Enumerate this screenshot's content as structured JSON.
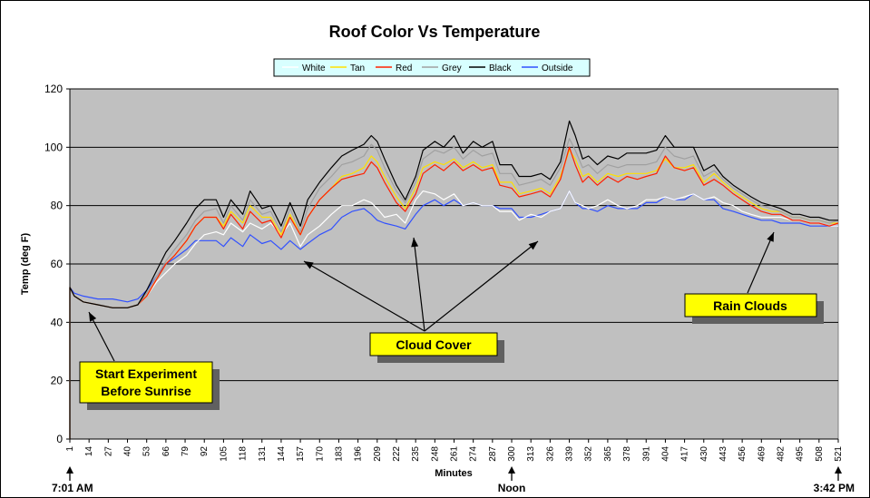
{
  "chart_data": {
    "type": "line",
    "title": "Roof Color Vs Temperature",
    "xlabel": "Minutes",
    "ylabel": "Temp (deg F)",
    "ylim": [
      0,
      120
    ],
    "xlim": [
      1,
      521
    ],
    "y_ticks": [
      0,
      20,
      40,
      60,
      80,
      100,
      120
    ],
    "x_ticks": [
      1,
      14,
      27,
      40,
      53,
      66,
      79,
      92,
      105,
      118,
      131,
      144,
      157,
      170,
      183,
      196,
      209,
      222,
      235,
      248,
      261,
      274,
      287,
      300,
      313,
      326,
      339,
      352,
      365,
      378,
      391,
      404,
      417,
      430,
      443,
      456,
      469,
      482,
      495,
      508,
      521
    ],
    "grid": "horizontal",
    "legend_position": "top",
    "plot_background": "#c0c0c0",
    "x": [
      1,
      4,
      10,
      20,
      30,
      40,
      47,
      53,
      60,
      66,
      72,
      80,
      86,
      92,
      100,
      105,
      110,
      118,
      123,
      131,
      137,
      144,
      150,
      157,
      162,
      170,
      178,
      185,
      192,
      200,
      205,
      209,
      214,
      222,
      228,
      235,
      240,
      248,
      254,
      261,
      267,
      274,
      280,
      287,
      292,
      300,
      305,
      313,
      320,
      326,
      333,
      339,
      343,
      348,
      352,
      358,
      365,
      372,
      378,
      385,
      391,
      398,
      404,
      410,
      417,
      423,
      430,
      437,
      443,
      450,
      456,
      462,
      469,
      476,
      482,
      490,
      495,
      502,
      508,
      515,
      521
    ],
    "series": [
      {
        "name": "White",
        "color": "#ffffff",
        "values": [
          52,
          49,
          47,
          46,
          45,
          45,
          46,
          49,
          54,
          57,
          60,
          63,
          67,
          70,
          71,
          70,
          74,
          71,
          74,
          72,
          74,
          70,
          74,
          66,
          70,
          73,
          77,
          80,
          80,
          82,
          81,
          79,
          76,
          77,
          74,
          82,
          85,
          84,
          82,
          84,
          80,
          81,
          80,
          80,
          78,
          78,
          75,
          77,
          76,
          78,
          79,
          85,
          81,
          80,
          79,
          80,
          82,
          80,
          79,
          80,
          82,
          82,
          83,
          82,
          83,
          84,
          82,
          83,
          81,
          80,
          78,
          77,
          76,
          76,
          76,
          75,
          75,
          74,
          74,
          73,
          73
        ]
      },
      {
        "name": "Tan",
        "color": "#ffe000",
        "values": [
          52,
          49,
          47,
          46,
          45,
          45,
          46,
          49,
          55,
          60,
          63,
          68,
          73,
          76,
          76,
          73,
          78,
          74,
          80,
          76,
          76,
          70,
          77,
          70,
          76,
          82,
          86,
          90,
          91,
          93,
          97,
          95,
          90,
          83,
          79,
          86,
          93,
          95,
          94,
          96,
          93,
          95,
          93,
          94,
          88,
          88,
          84,
          85,
          86,
          84,
          90,
          99,
          96,
          90,
          91,
          88,
          91,
          90,
          91,
          91,
          91,
          92,
          96,
          93,
          93,
          94,
          88,
          91,
          88,
          85,
          83,
          81,
          79,
          78,
          78,
          76,
          76,
          75,
          75,
          74,
          74
        ]
      },
      {
        "name": "Red",
        "color": "#ff2000",
        "values": [
          52,
          49,
          47,
          46,
          45,
          45,
          46,
          49,
          55,
          60,
          63,
          68,
          73,
          76,
          76,
          72,
          77,
          72,
          78,
          74,
          75,
          69,
          76,
          70,
          76,
          82,
          86,
          89,
          90,
          91,
          95,
          93,
          88,
          81,
          78,
          84,
          91,
          94,
          92,
          95,
          92,
          94,
          92,
          93,
          87,
          86,
          83,
          84,
          85,
          83,
          89,
          100,
          94,
          88,
          90,
          87,
          90,
          88,
          90,
          89,
          90,
          91,
          97,
          93,
          92,
          93,
          87,
          89,
          87,
          84,
          82,
          80,
          78,
          77,
          77,
          75,
          75,
          74,
          74,
          73,
          74
        ]
      },
      {
        "name": "Grey",
        "color": "#a0a0a0",
        "values": [
          52,
          49,
          47,
          46,
          45,
          45,
          46,
          50,
          56,
          61,
          65,
          70,
          75,
          78,
          79,
          74,
          80,
          75,
          82,
          77,
          78,
          71,
          79,
          71,
          79,
          86,
          90,
          94,
          95,
          97,
          101,
          99,
          93,
          85,
          81,
          88,
          96,
          99,
          98,
          100,
          96,
          99,
          97,
          98,
          91,
          91,
          87,
          88,
          89,
          87,
          93,
          103,
          99,
          93,
          94,
          91,
          94,
          93,
          94,
          94,
          94,
          95,
          100,
          97,
          96,
          97,
          90,
          92,
          89,
          86,
          84,
          82,
          80,
          79,
          78,
          76,
          76,
          75,
          75,
          74,
          75
        ]
      },
      {
        "name": "Black",
        "color": "#000000",
        "values": [
          52,
          49,
          47,
          46,
          45,
          45,
          46,
          51,
          58,
          64,
          68,
          74,
          79,
          82,
          82,
          76,
          82,
          77,
          85,
          79,
          80,
          73,
          81,
          73,
          82,
          88,
          93,
          97,
          99,
          101,
          104,
          102,
          96,
          87,
          82,
          90,
          99,
          102,
          100,
          104,
          98,
          102,
          100,
          102,
          94,
          94,
          90,
          90,
          91,
          89,
          95,
          109,
          104,
          96,
          97,
          94,
          97,
          96,
          98,
          98,
          98,
          99,
          104,
          100,
          100,
          100,
          92,
          94,
          90,
          87,
          85,
          83,
          81,
          80,
          79,
          77,
          77,
          76,
          76,
          75,
          75
        ]
      },
      {
        "name": "Outside",
        "color": "#3050ff",
        "values": [
          52,
          50,
          49,
          48,
          48,
          47,
          48,
          51,
          56,
          60,
          62,
          65,
          68,
          68,
          68,
          66,
          69,
          66,
          70,
          67,
          68,
          65,
          68,
          65,
          67,
          70,
          72,
          76,
          78,
          79,
          77,
          75,
          74,
          73,
          72,
          77,
          80,
          82,
          80,
          82,
          80,
          81,
          80,
          80,
          79,
          79,
          76,
          76,
          77,
          78,
          79,
          85,
          81,
          79,
          79,
          78,
          80,
          79,
          79,
          79,
          81,
          81,
          83,
          82,
          82,
          84,
          82,
          82,
          79,
          78,
          77,
          76,
          75,
          75,
          74,
          74,
          74,
          73,
          73,
          73,
          73
        ]
      }
    ],
    "annotations": [
      {
        "id": "start",
        "text_lines": [
          "Start Experiment",
          "Before Sunrise"
        ]
      },
      {
        "id": "cloud",
        "text_lines": [
          "Cloud Cover"
        ]
      },
      {
        "id": "rain",
        "text_lines": [
          "Rain Clouds"
        ]
      }
    ],
    "time_markers": [
      {
        "x": 1,
        "label": "7:01 AM"
      },
      {
        "x": 300,
        "label": "Noon"
      },
      {
        "x": 521,
        "label": "3:42 PM"
      }
    ]
  }
}
